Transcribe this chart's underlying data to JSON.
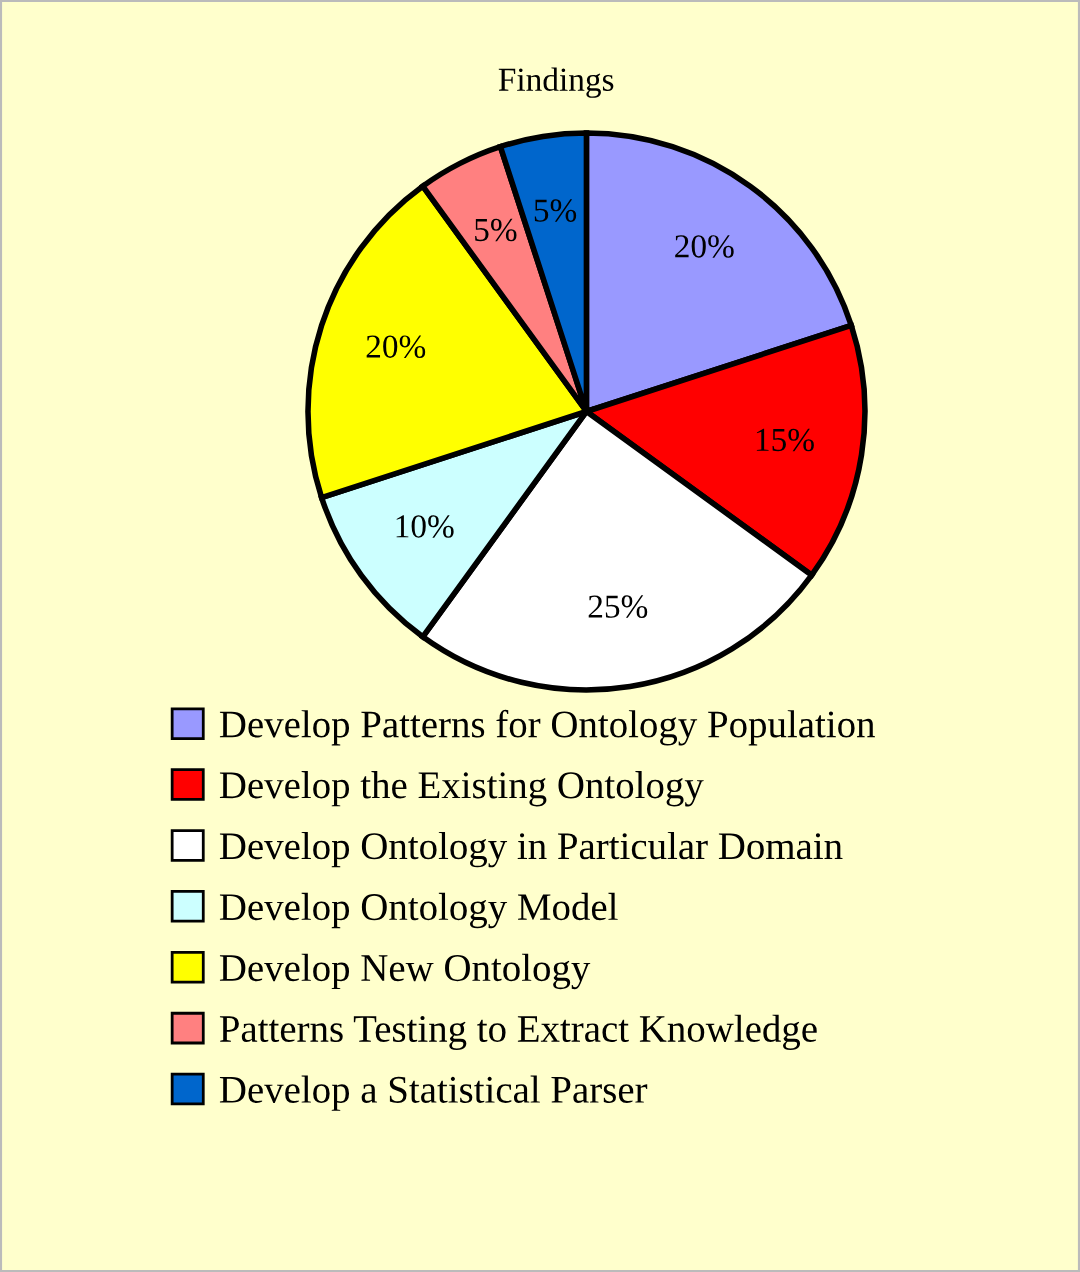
{
  "chart_data": {
    "type": "pie",
    "title": "Findings",
    "categories": [
      "Develop Patterns for Ontology Population",
      "Develop the Existing Ontology",
      "Develop Ontology in Particular Domain",
      "Develop Ontology Model",
      "Develop New Ontology",
      "Patterns Testing to Extract Knowledge",
      "Develop a Statistical Parser"
    ],
    "values": [
      20,
      15,
      25,
      10,
      20,
      5,
      5
    ],
    "colors": [
      "#9999ff",
      "#ff0000",
      "#ffffff",
      "#ccffff",
      "#ffff00",
      "#ff8080",
      "#0066cc"
    ],
    "value_labels": [
      "20%",
      "15%",
      "25%",
      "10%",
      "20%",
      "5%",
      "5%"
    ],
    "legend": "bottom"
  }
}
